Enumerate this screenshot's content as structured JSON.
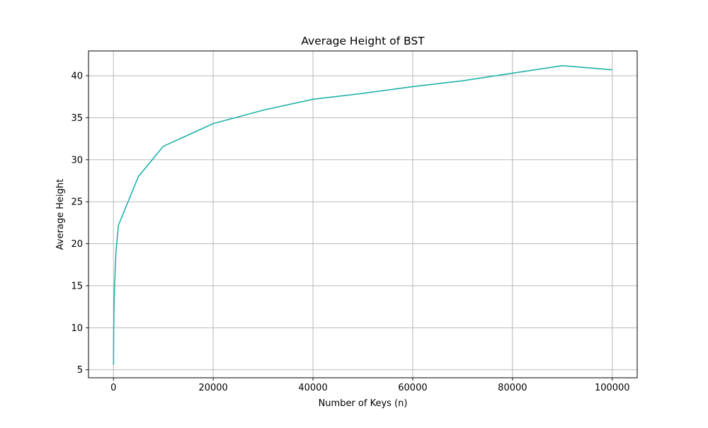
{
  "chart_data": {
    "type": "line",
    "title": "Average Height of BST",
    "xlabel": "Number of Keys (n)",
    "ylabel": "Average Height",
    "xlim": [
      -5000,
      105000
    ],
    "ylim": [
      4.05,
      42.95
    ],
    "xticks": [
      0,
      20000,
      40000,
      60000,
      80000,
      100000
    ],
    "yticks": [
      5,
      10,
      15,
      20,
      25,
      30,
      35,
      40
    ],
    "grid": true,
    "series": [
      {
        "color": "#20b2aa",
        "x": [
          10,
          50,
          100,
          200,
          500,
          1000,
          5000,
          10000,
          20000,
          30000,
          40000,
          50000,
          60000,
          70000,
          80000,
          90000,
          100000
        ],
        "y": [
          5.6,
          9.6,
          11.9,
          14.6,
          19.0,
          22.2,
          28.0,
          31.6,
          34.3,
          35.9,
          37.2,
          37.9,
          38.7,
          39.4,
          40.3,
          41.2,
          40.7
        ]
      }
    ]
  }
}
